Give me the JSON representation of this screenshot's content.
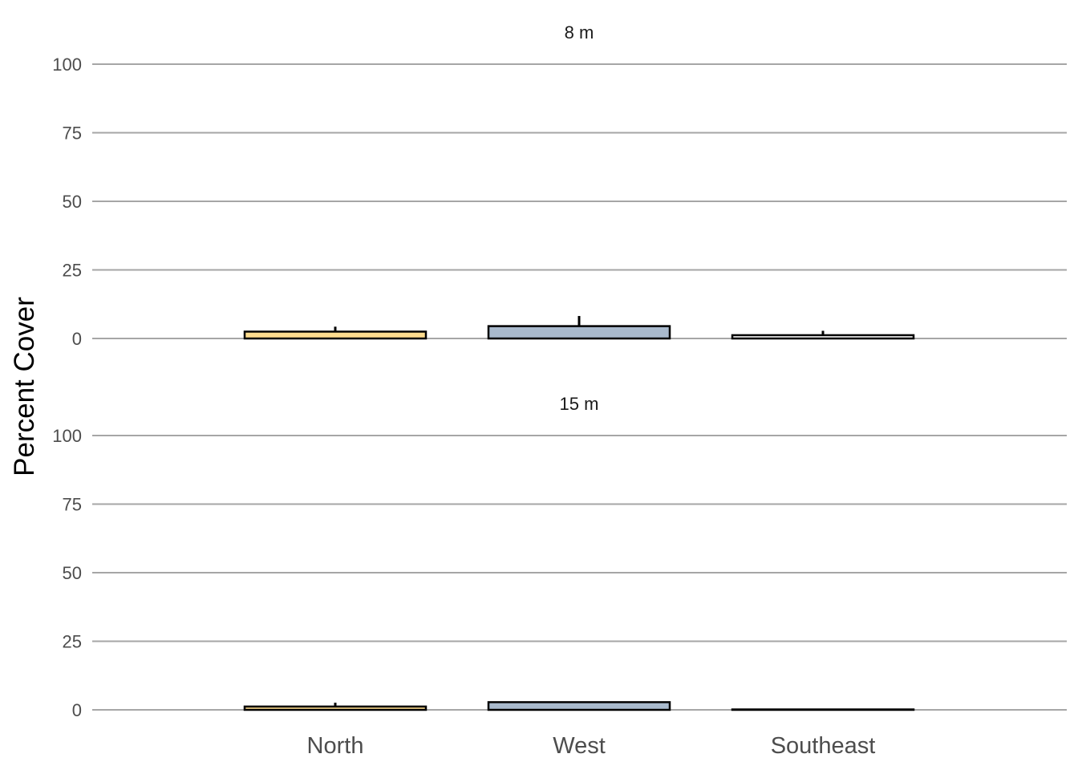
{
  "chart_data": {
    "type": "bar",
    "ylabel": "Percent Cover",
    "categories": [
      "North",
      "West",
      "Southeast"
    ],
    "yticks": [
      0,
      25,
      50,
      75,
      100
    ],
    "ylim": [
      0,
      100
    ],
    "grid": true,
    "colors": {
      "North": "#FDDC8E",
      "West": "#A9BACD",
      "Southeast": "#F7F7F7"
    },
    "panels": [
      {
        "strip_label": "8 m",
        "values": [
          2.5,
          4.5,
          1.2
        ],
        "err_upper": [
          4.3,
          8.2,
          2.8
        ]
      },
      {
        "strip_label": "15 m",
        "values": [
          1.2,
          2.8,
          0.1
        ],
        "err_upper": [
          2.6,
          3.0,
          0.2
        ]
      }
    ]
  }
}
